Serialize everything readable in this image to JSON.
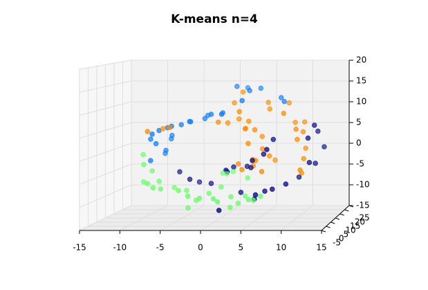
{
  "chart_data": {
    "type": "scatter3d",
    "title": "K-means n=4",
    "xlim": [
      -15,
      15
    ],
    "ylim": [
      -5,
      25
    ],
    "zlim": [
      -15,
      20
    ],
    "xticks": [
      -15,
      -10,
      -5,
      0,
      5,
      10,
      15
    ],
    "yticks": [
      -5,
      0,
      5,
      10,
      15,
      20,
      25
    ],
    "zticks": [
      -15,
      -10,
      -5,
      0,
      5,
      10,
      15,
      20
    ],
    "grid": true,
    "series": [
      {
        "color": "#0a7cff",
        "x": [
          1.5,
          2.6,
          3.5,
          4.5,
          7.5,
          8.2,
          3.0,
          -2.0,
          -1.2,
          -0.2,
          0.5,
          -2.2,
          -3.7,
          -4.4,
          -5.1,
          -5.8,
          -7.1,
          -7.8,
          -8.5,
          -6.7,
          -9.1,
          -7.0,
          -8.2,
          -7.3,
          -8.0,
          -8.7
        ],
        "y": [
          14,
          16,
          12,
          15,
          13,
          11,
          9,
          12,
          10,
          13,
          8,
          11,
          9,
          12,
          10,
          7,
          11,
          9,
          8,
          12,
          10,
          13,
          9,
          11,
          14,
          8
        ],
        "z": [
          14.7,
          14.2,
          13.9,
          14.2,
          12.2,
          11.5,
          11.9,
          8.2,
          8.7,
          8.7,
          8.9,
          7.6,
          7.1,
          6.8,
          6.3,
          6.3,
          5.5,
          5.1,
          4.4,
          3.6,
          3.0,
          2.7,
          2.1,
          0.3,
          -0.8,
          -1.6
        ]
      },
      {
        "color": "#ff8c00",
        "x": [
          2.8,
          5.8,
          6.3,
          8.7,
          8.4,
          -8.9,
          -7.5,
          -6.2,
          -0.1,
          0.8,
          2.1,
          3.7,
          4.8,
          2.8,
          3.4,
          5.3,
          4.1,
          5.5,
          5.2,
          4.6,
          3.9,
          3.3,
          2.5,
          6.4,
          7.0,
          6.0,
          9.5,
          10.0,
          10.6,
          10.8,
          10.3,
          11.0,
          11.0,
          10.8,
          10.6,
          1.5,
          2.3
        ],
        "y": [
          8,
          13,
          11,
          12,
          9,
          7,
          10,
          8,
          9,
          11,
          12,
          10,
          8,
          13,
          9,
          11,
          7,
          10,
          6,
          8,
          12,
          7,
          9,
          10,
          11,
          6,
          12,
          9,
          13,
          10,
          8,
          11,
          9,
          7,
          10,
          12,
          14
        ],
        "z": [
          9.5,
          11.1,
          9.8,
          11.1,
          9.0,
          5.1,
          5.4,
          5.9,
          7.0,
          6.6,
          7.4,
          7.1,
          5.4,
          5.1,
          5.5,
          3.5,
          2.4,
          0.8,
          -1.3,
          -2.8,
          -1.9,
          -3.5,
          -2.5,
          -0.8,
          -1.9,
          -3.8,
          6.6,
          5.4,
          6.6,
          4.7,
          3.2,
          0.8,
          -1.3,
          -3.6,
          -4.7,
          11.1,
          13.4
        ]
      },
      {
        "color": "#10108a",
        "x": [
          12.4,
          12.6,
          11.7,
          13.3,
          12.0,
          12.4,
          10.4,
          9.1,
          7.2,
          6.8,
          6.1,
          4.8,
          4.3,
          3.5,
          1.9,
          1.4,
          7.5,
          6.4,
          5.5,
          5.2,
          3.0,
          1.0,
          -1.2,
          -3.1,
          -3.8,
          -5.5,
          1.4
        ],
        "y": [
          9,
          11,
          8,
          12,
          7,
          10,
          9,
          6,
          8,
          5,
          7,
          6,
          8,
          10,
          9,
          7,
          5,
          6,
          4,
          5,
          8,
          3,
          10,
          12,
          9,
          11,
          6
        ],
        "z": [
          6.3,
          4.7,
          3.5,
          1.0,
          -1.9,
          -2.5,
          -5.5,
          -6.6,
          3.2,
          1.3,
          0.0,
          -1.3,
          -3.2,
          -3.2,
          -3.2,
          -4.0,
          -7.6,
          -8.2,
          -8.7,
          -9.8,
          -8.8,
          -12.0,
          -7.1,
          -7.1,
          -6.0,
          -4.6,
          -3.5
        ]
      },
      {
        "color": "#66ff66",
        "x": [
          -10.5,
          -10.0,
          -9.1,
          -9.8,
          -9.1,
          -8.0,
          -8.2,
          -7.6,
          -6.2,
          -5.1,
          -4.4,
          -3.7,
          -3.3,
          -2.8,
          -2.0,
          -1.3,
          -0.4,
          0.3,
          1.7,
          2.1,
          2.8,
          3.4,
          4.3,
          4.6,
          5.7,
          -0.2,
          0.5,
          1.0,
          3.4,
          0.1
        ],
        "y": [
          12,
          10,
          11,
          9,
          8,
          10,
          7,
          9,
          11,
          8,
          10,
          7,
          5,
          8,
          6,
          9,
          7,
          6,
          8,
          5,
          7,
          9,
          6,
          8,
          7,
          13,
          12,
          14,
          11,
          10
        ],
        "z": [
          -0.8,
          -2.8,
          -4.4,
          -6.6,
          -6.8,
          -6.6,
          -7.6,
          -8.2,
          -8.2,
          -8.4,
          -8.7,
          -9.5,
          -11.8,
          -10.6,
          -9.8,
          -9.2,
          -10.1,
          -10.6,
          -9.8,
          -11.7,
          -11.1,
          -9.8,
          -10.1,
          -10.6,
          -9.5,
          -5.2,
          -5.2,
          -5.0,
          -6.0,
          -7.9
        ]
      }
    ]
  }
}
